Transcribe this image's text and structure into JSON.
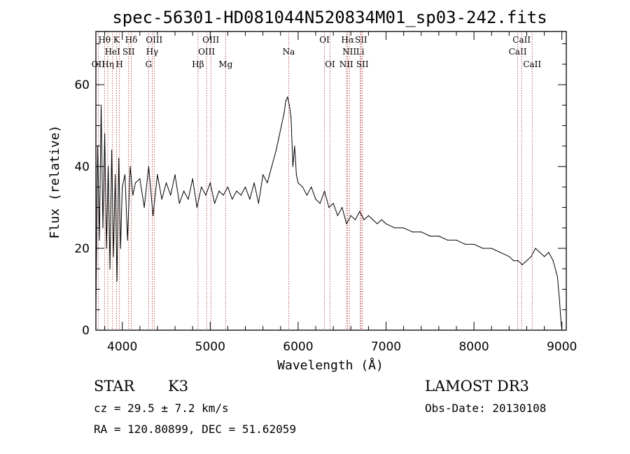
{
  "chart_data": {
    "type": "line",
    "title": "spec-56301-HD081044N520834M01_sp03-242.fits",
    "xlabel": "Wavelength (Å)",
    "ylabel": "Flux (relative)",
    "xlim": [
      3700,
      9050
    ],
    "ylim": [
      0,
      73
    ],
    "x_ticks": [
      4000,
      5000,
      6000,
      7000,
      8000,
      9000
    ],
    "y_ticks": [
      0,
      20,
      40,
      60
    ],
    "series": [
      {
        "x": [
          3700,
          3720,
          3740,
          3760,
          3780,
          3800,
          3820,
          3840,
          3860,
          3880,
          3900,
          3920,
          3940,
          3960,
          3980,
          4000,
          4030,
          4060,
          4090,
          4120,
          4150,
          4200,
          4250,
          4300,
          4350,
          4400,
          4450,
          4500,
          4550,
          4600,
          4650,
          4700,
          4750,
          4800,
          4850,
          4900,
          4950,
          5000,
          5050,
          5100,
          5150,
          5200,
          5250,
          5300,
          5350,
          5400,
          5450,
          5500,
          5550,
          5600,
          5650,
          5700,
          5750,
          5780,
          5810,
          5840,
          5860,
          5880,
          5900,
          5920,
          5940,
          5960,
          5980,
          6000,
          6050,
          6100,
          6150,
          6200,
          6250,
          6300,
          6350,
          6400,
          6450,
          6500,
          6550,
          6600,
          6650,
          6700,
          6750,
          6800,
          6850,
          6900,
          6950,
          7000,
          7100,
          7200,
          7300,
          7400,
          7500,
          7600,
          7700,
          7800,
          7900,
          8000,
          8100,
          8200,
          8300,
          8400,
          8450,
          8500,
          8550,
          8600,
          8650,
          8700,
          8750,
          8800,
          8850,
          8900,
          8950,
          8970,
          8990,
          9000
        ],
        "y": [
          5,
          45,
          22,
          55,
          25,
          48,
          20,
          40,
          15,
          44,
          18,
          38,
          12,
          42,
          20,
          35,
          38,
          22,
          40,
          33,
          36,
          37,
          30,
          40,
          28,
          38,
          32,
          36,
          33,
          38,
          31,
          34,
          32,
          37,
          30,
          35,
          33,
          36,
          31,
          34,
          33,
          35,
          32,
          34,
          33,
          35,
          32,
          36,
          31,
          38,
          36,
          40,
          44,
          47,
          50,
          53,
          56,
          57,
          55,
          52,
          40,
          45,
          38,
          36,
          35,
          33,
          35,
          32,
          31,
          34,
          30,
          31,
          28,
          30,
          26,
          28,
          27,
          29,
          27,
          28,
          27,
          26,
          27,
          26,
          25,
          25,
          24,
          24,
          23,
          23,
          22,
          22,
          21,
          21,
          20,
          20,
          19,
          18,
          17,
          17,
          16,
          17,
          18,
          20,
          19,
          18,
          19,
          17,
          13,
          8,
          2,
          0
        ]
      }
    ],
    "line_marks": [
      {
        "wl": 3727,
        "labels": [
          "OII"
        ],
        "row": 3
      },
      {
        "wl": 3798,
        "labels": [
          "Hθ"
        ],
        "row": 1
      },
      {
        "wl": 3836,
        "labels": [
          "Hη"
        ],
        "row": 3
      },
      {
        "wl": 3889,
        "labels": [
          "HeI"
        ],
        "row": 2
      },
      {
        "wl": 3934,
        "labels": [
          "K"
        ],
        "row": 1
      },
      {
        "wl": 3968,
        "labels": [
          "H"
        ],
        "row": 3
      },
      {
        "wl": 4072,
        "labels": [
          "SII"
        ],
        "row": 2
      },
      {
        "wl": 4102,
        "labels": [
          "Hδ"
        ],
        "row": 1
      },
      {
        "wl": 4300,
        "labels": [
          "G"
        ],
        "row": 3
      },
      {
        "wl": 4340,
        "labels": [
          "Hγ"
        ],
        "row": 2
      },
      {
        "wl": 4363,
        "labels": [
          "OIII"
        ],
        "row": 1
      },
      {
        "wl": 4861,
        "labels": [
          "Hβ"
        ],
        "row": 3
      },
      {
        "wl": 4959,
        "labels": [
          "OIII"
        ],
        "row": 2
      },
      {
        "wl": 5007,
        "labels": [
          "OIII"
        ],
        "row": 1
      },
      {
        "wl": 5175,
        "labels": [
          "Mg"
        ],
        "row": 3
      },
      {
        "wl": 5893,
        "labels": [
          "Na"
        ],
        "row": 2
      },
      {
        "wl": 6300,
        "labels": [
          "OI"
        ],
        "row": 1
      },
      {
        "wl": 6363,
        "labels": [
          "OI"
        ],
        "row": 3
      },
      {
        "wl": 6548,
        "labels": [
          "NII"
        ],
        "row": 3
      },
      {
        "wl": 6563,
        "labels": [
          "Hα"
        ],
        "row": 1
      },
      {
        "wl": 6583,
        "labels": [
          "NII"
        ],
        "row": 2
      },
      {
        "wl": 6707,
        "labels": [
          "Li"
        ],
        "row": 2
      },
      {
        "wl": 6716,
        "labels": [
          "SII"
        ],
        "row": 1
      },
      {
        "wl": 6731,
        "labels": [
          "SII"
        ],
        "row": 3
      },
      {
        "wl": 8498,
        "labels": [
          "CaII"
        ],
        "row": 2
      },
      {
        "wl": 8542,
        "labels": [
          "CaII"
        ],
        "row": 1
      },
      {
        "wl": 8662,
        "labels": [
          "CaII"
        ],
        "row": 3
      }
    ],
    "line_mark_color": "#b03030"
  },
  "info": {
    "class": "STAR",
    "subclass": "K3",
    "survey": "LAMOST DR3",
    "cz": "cz = 29.5 ± 7.2 km/s",
    "obs_date": "Obs-Date: 20130108",
    "radec": "RA = 120.80899, DEC =  51.62059"
  }
}
